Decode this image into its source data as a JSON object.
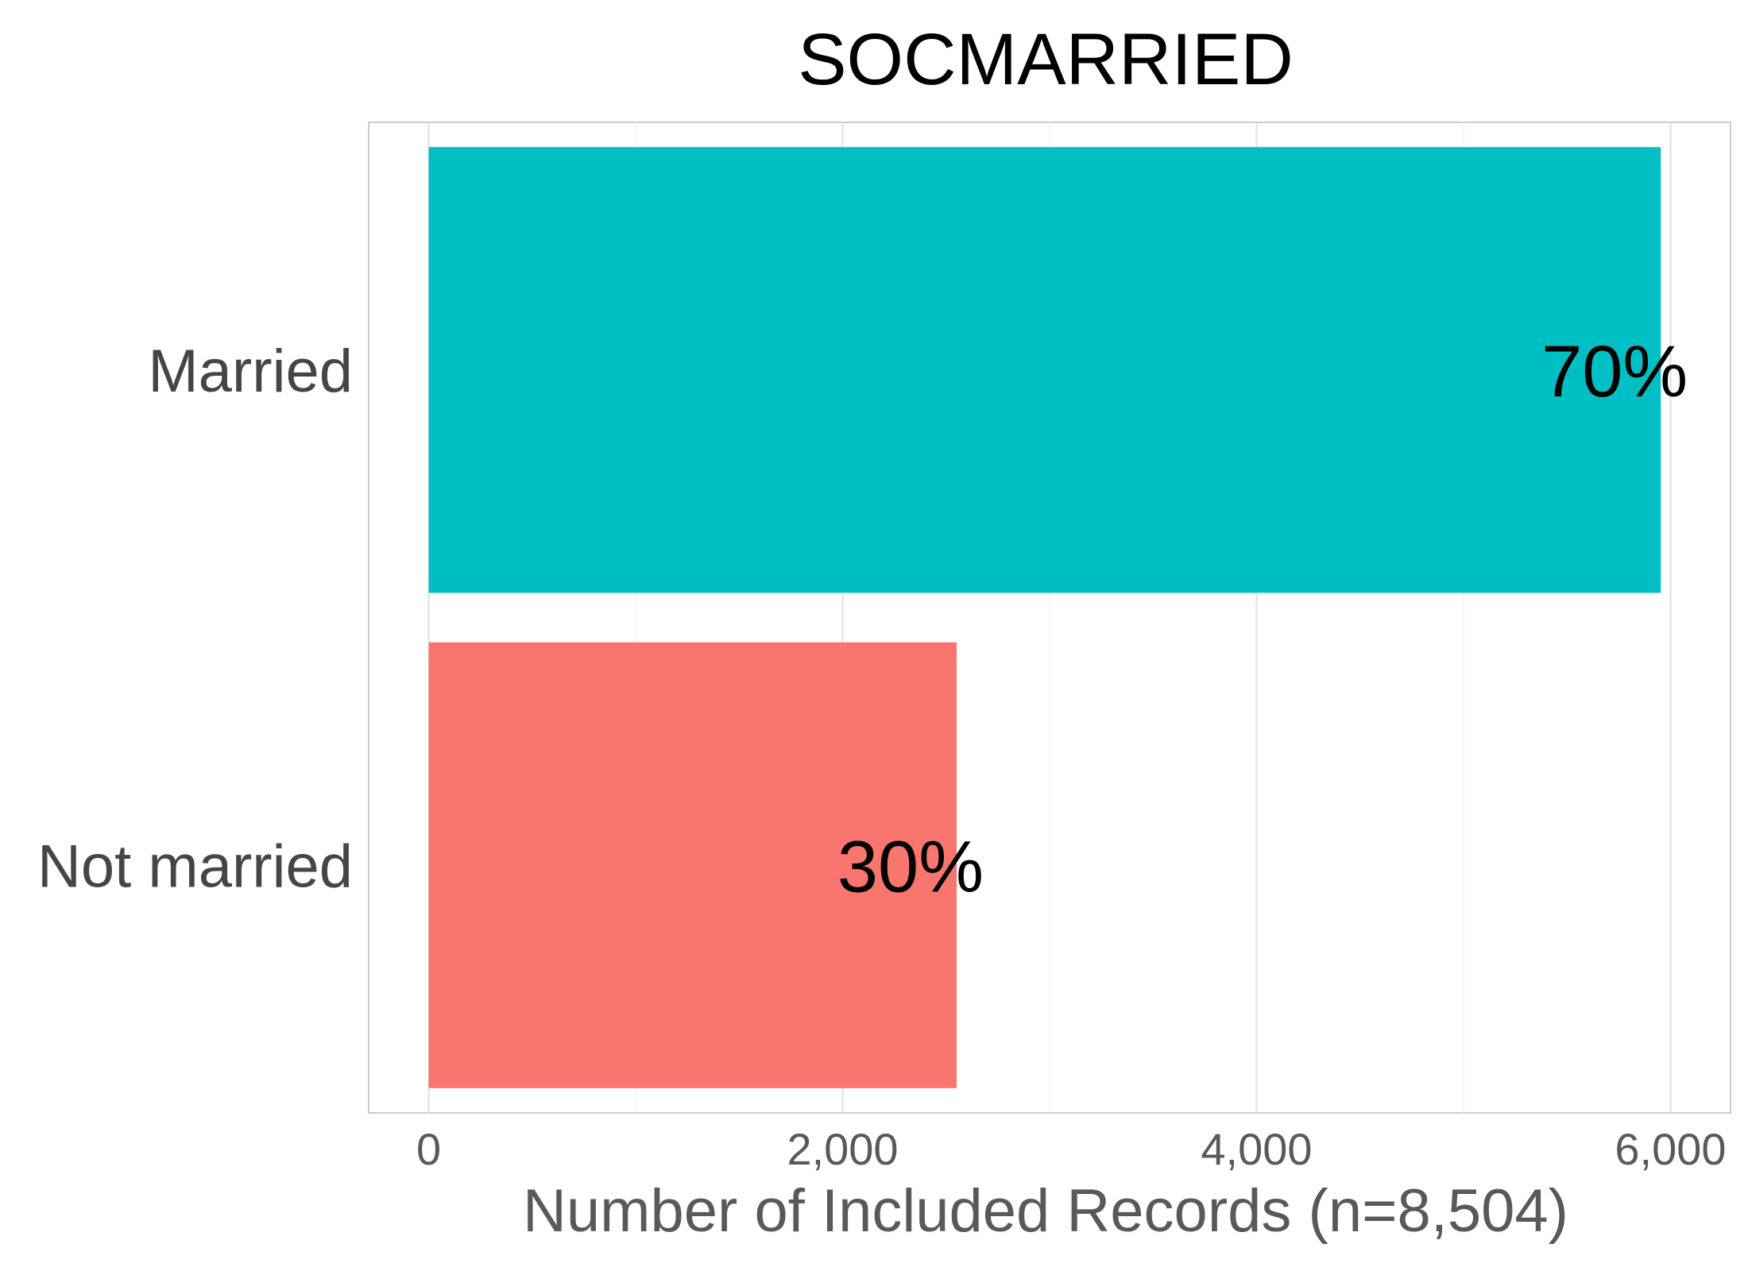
{
  "chart_data": {
    "type": "bar",
    "orientation": "horizontal",
    "title": "SOCMARRIED",
    "xlabel": "Number of Included Records (n=8,504)",
    "ylabel": "",
    "categories": [
      "Married",
      "Not married"
    ],
    "values": [
      5953,
      2551
    ],
    "data_labels": [
      "70%",
      "30%"
    ],
    "colors": [
      "#00BFC4",
      "#F8766D"
    ],
    "xlim": [
      -290,
      6290
    ],
    "xticks": [
      0,
      2000,
      4000,
      6000
    ],
    "xtick_labels": [
      "0",
      "2,000",
      "4,000",
      "6,000"
    ],
    "grid": true,
    "legend": "none"
  }
}
